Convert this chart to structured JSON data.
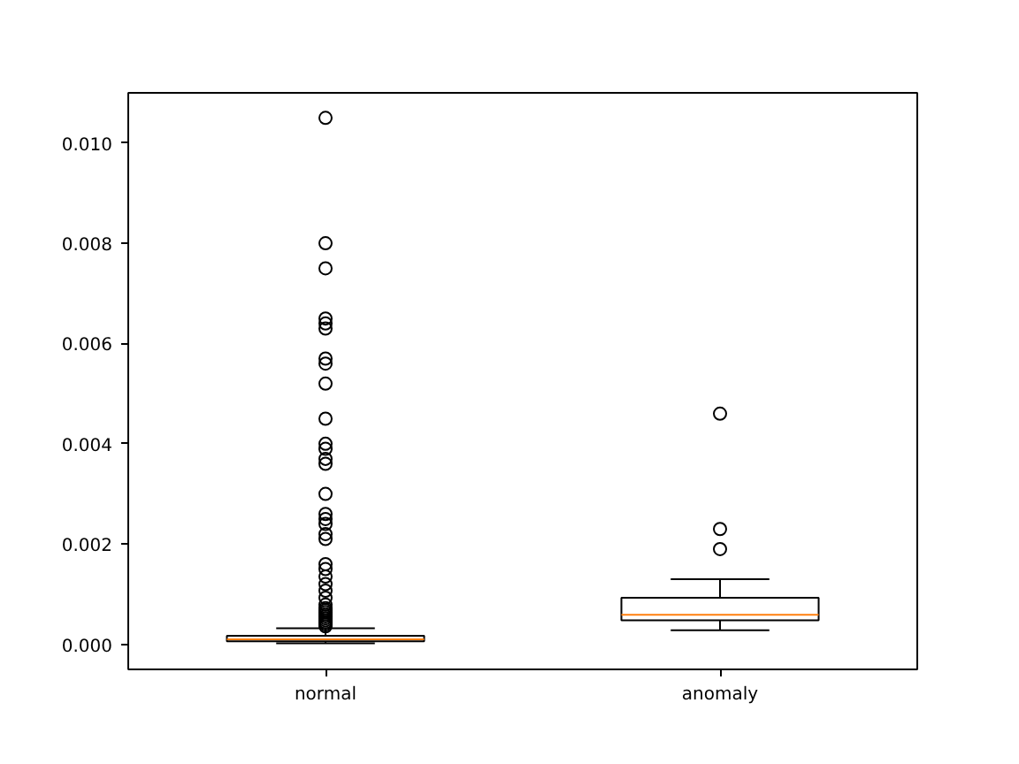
{
  "chart_data": {
    "type": "box",
    "categories": [
      "normal",
      "anomaly"
    ],
    "boxes": [
      {
        "low": 2e-05,
        "q1": 6e-05,
        "median": 0.0001,
        "q3": 0.00017,
        "high": 0.00032,
        "outliers": [
          0.0105,
          0.008,
          0.0075,
          0.0065,
          0.0064,
          0.0063,
          0.0057,
          0.0056,
          0.0052,
          0.0045,
          0.004,
          0.0039,
          0.0037,
          0.0036,
          0.003,
          0.0026,
          0.0025,
          0.0024,
          0.0022,
          0.0021,
          0.0016,
          0.0015,
          0.00135,
          0.0012,
          0.00107,
          0.00093,
          0.00079,
          0.00072,
          0.00068,
          0.00064,
          0.0006,
          0.00056,
          0.00052,
          0.00048,
          0.00044,
          0.0004,
          0.00036
        ]
      },
      {
        "low": 0.00028,
        "q1": 0.00048,
        "median": 0.00059,
        "q3": 0.00093,
        "high": 0.0013,
        "outliers": [
          0.0046,
          0.0023,
          0.0019
        ]
      }
    ],
    "ylim": [
      -0.0005,
      0.011
    ],
    "yticks": [
      {
        "value": 0,
        "label": "0.000"
      },
      {
        "value": 0.002,
        "label": "0.002"
      },
      {
        "value": 0.004,
        "label": "0.004"
      },
      {
        "value": 0.006,
        "label": "0.006"
      },
      {
        "value": 0.008,
        "label": "0.008"
      },
      {
        "value": 0.01,
        "label": "0.010"
      }
    ],
    "grid": false
  }
}
